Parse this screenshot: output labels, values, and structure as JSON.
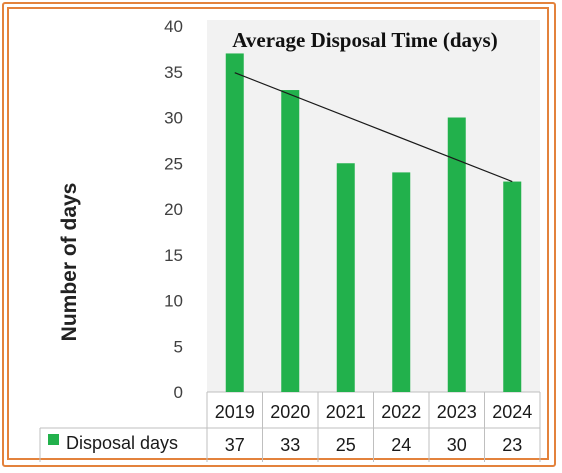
{
  "colors": {
    "frame": "#e3823c",
    "bar": "#22b14c",
    "plot_background": "#f2f2f2",
    "trendline": "#1a1a1a"
  },
  "chart_data": {
    "type": "bar",
    "title": "Average Disposal Time (days)",
    "ylabel": "Number of days",
    "xlabel": "",
    "categories": [
      "2019",
      "2020",
      "2021",
      "2022",
      "2023",
      "2024"
    ],
    "series": [
      {
        "name": "Disposal days",
        "values": [
          37,
          33,
          25,
          24,
          30,
          23
        ]
      }
    ],
    "ylim": [
      0,
      40
    ],
    "yticks": [
      0,
      5,
      10,
      15,
      20,
      25,
      30,
      35,
      40
    ],
    "trendline": {
      "type": "linear",
      "from": {
        "x": "2019",
        "y": 34.9
      },
      "to": {
        "x": "2024",
        "y": 23.0
      }
    },
    "grid": false,
    "data_table": true,
    "legend": "data-table"
  }
}
